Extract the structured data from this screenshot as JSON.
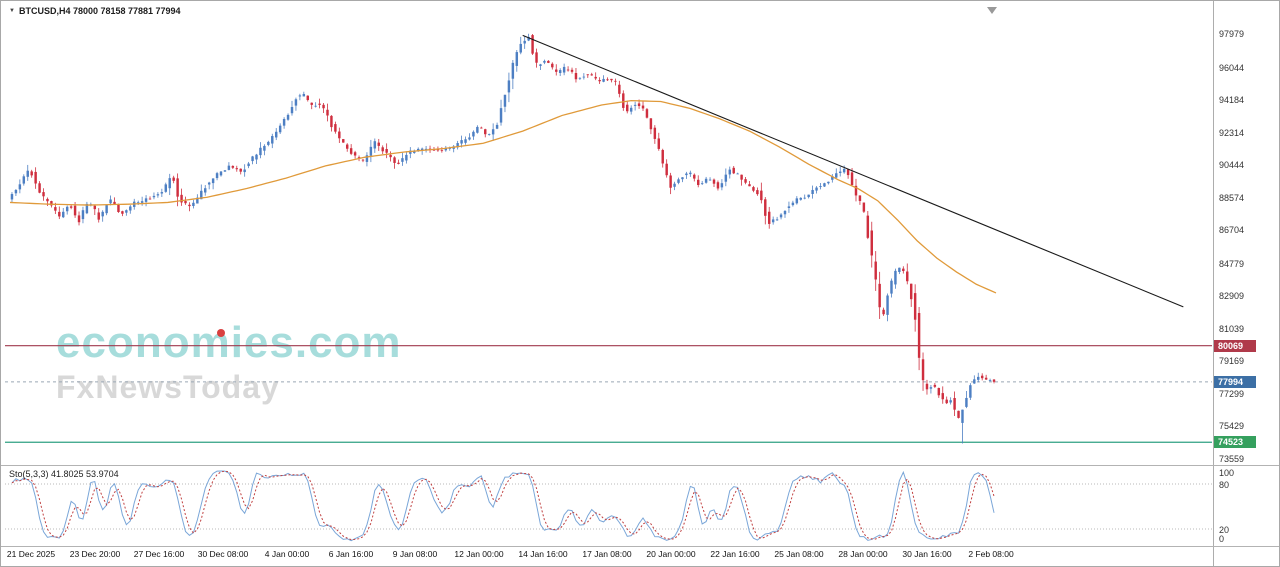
{
  "header": {
    "symbol_info": "BTCUSD,H4 78000 78158 77881 77994",
    "dropdown_icon": "▼"
  },
  "watermark": {
    "line1": "economies.com",
    "line2": "FxNewsToday"
  },
  "indicator": {
    "label": "Sto(5,3,3) 41.8025 53.9704"
  },
  "colors": {
    "up_candle": "#4d7fc3",
    "down_candle": "#cf2e3e",
    "moving_average": "#e09a3a",
    "trendline": "#1a1a1a",
    "resistance_line": "#a03a4e",
    "support_line": "#2fa083",
    "current_price_line": "#9aa7b5",
    "badge_resistance": "#b03a4a",
    "badge_current": "#3c6fa5",
    "badge_support": "#35a05e",
    "stoch_k": "#7aa6d8",
    "stoch_d": "#c04040",
    "watermark_teal": "#6ec8c6",
    "watermark_gray": "#b9b9b9",
    "watermark_dot_red": "#d94040",
    "shift_marker": "#999999"
  },
  "chart_data": {
    "type": "candlestick",
    "symbol": "BTCUSD",
    "timeframe": "H4",
    "current_ohlc": {
      "open": 78000,
      "high": 78158,
      "low": 77881,
      "close": 77994
    },
    "y_axis": {
      "ticks": [
        97979,
        96044,
        94184,
        92314,
        90444,
        88574,
        86704,
        84779,
        82909,
        81039,
        79169,
        77299,
        75429,
        73559
      ],
      "range": [
        73559,
        98500
      ]
    },
    "x_axis": {
      "labels": [
        "21 Dec 2025",
        "23 Dec 20:00",
        "27 Dec 16:00",
        "30 Dec 08:00",
        "4 Jan 00:00",
        "6 Jan 16:00",
        "9 Jan 08:00",
        "12 Jan 00:00",
        "14 Jan 16:00",
        "17 Jan 08:00",
        "20 Jan 00:00",
        "22 Jan 16:00",
        "25 Jan 08:00",
        "28 Jan 00:00",
        "30 Jan 16:00",
        "2 Feb 08:00"
      ]
    },
    "levels": {
      "resistance": 80069,
      "current_price": 77994,
      "support": 74523
    },
    "trendline": {
      "from_f": 0.52,
      "from_price": 97900,
      "to_f": 1.19,
      "to_price": 82300
    },
    "candle_count": 250,
    "extremes": {
      "high_f": 0.528,
      "high_price": 97979,
      "low_f": 0.963,
      "low_price": 74450
    },
    "price_path": [
      [
        0.0,
        88400
      ],
      [
        0.01,
        89300
      ],
      [
        0.022,
        90200
      ],
      [
        0.03,
        89000
      ],
      [
        0.04,
        88300
      ],
      [
        0.052,
        87500
      ],
      [
        0.062,
        88200
      ],
      [
        0.072,
        87300
      ],
      [
        0.082,
        88400
      ],
      [
        0.092,
        87400
      ],
      [
        0.103,
        88500
      ],
      [
        0.115,
        87600
      ],
      [
        0.128,
        88300
      ],
      [
        0.143,
        88500
      ],
      [
        0.158,
        89000
      ],
      [
        0.166,
        90000
      ],
      [
        0.174,
        88400
      ],
      [
        0.186,
        88100
      ],
      [
        0.2,
        89200
      ],
      [
        0.213,
        90000
      ],
      [
        0.225,
        90400
      ],
      [
        0.237,
        90100
      ],
      [
        0.25,
        91000
      ],
      [
        0.263,
        91700
      ],
      [
        0.278,
        92800
      ],
      [
        0.292,
        94300
      ],
      [
        0.3,
        94500
      ],
      [
        0.308,
        93800
      ],
      [
        0.317,
        94000
      ],
      [
        0.327,
        92800
      ],
      [
        0.338,
        91800
      ],
      [
        0.35,
        91000
      ],
      [
        0.36,
        90700
      ],
      [
        0.372,
        91700
      ],
      [
        0.383,
        91100
      ],
      [
        0.394,
        90500
      ],
      [
        0.408,
        91200
      ],
      [
        0.422,
        91400
      ],
      [
        0.437,
        91300
      ],
      [
        0.452,
        91500
      ],
      [
        0.468,
        92100
      ],
      [
        0.478,
        92700
      ],
      [
        0.487,
        92100
      ],
      [
        0.496,
        92800
      ],
      [
        0.505,
        94800
      ],
      [
        0.513,
        96500
      ],
      [
        0.521,
        97500
      ],
      [
        0.528,
        97800
      ],
      [
        0.536,
        96200
      ],
      [
        0.546,
        96500
      ],
      [
        0.556,
        95700
      ],
      [
        0.566,
        96100
      ],
      [
        0.577,
        95400
      ],
      [
        0.588,
        95700
      ],
      [
        0.6,
        95200
      ],
      [
        0.61,
        95500
      ],
      [
        0.618,
        95000
      ],
      [
        0.626,
        93400
      ],
      [
        0.636,
        94000
      ],
      [
        0.646,
        93500
      ],
      [
        0.655,
        92200
      ],
      [
        0.663,
        90700
      ],
      [
        0.672,
        89200
      ],
      [
        0.682,
        89700
      ],
      [
        0.691,
        90100
      ],
      [
        0.701,
        89300
      ],
      [
        0.711,
        89700
      ],
      [
        0.721,
        89100
      ],
      [
        0.731,
        90300
      ],
      [
        0.741,
        89800
      ],
      [
        0.751,
        89200
      ],
      [
        0.761,
        88800
      ],
      [
        0.771,
        87200
      ],
      [
        0.781,
        87400
      ],
      [
        0.791,
        88100
      ],
      [
        0.801,
        88500
      ],
      [
        0.811,
        88700
      ],
      [
        0.821,
        89200
      ],
      [
        0.831,
        89500
      ],
      [
        0.841,
        90000
      ],
      [
        0.85,
        90300
      ],
      [
        0.858,
        88800
      ],
      [
        0.866,
        88200
      ],
      [
        0.873,
        86200
      ],
      [
        0.879,
        84000
      ],
      [
        0.886,
        81500
      ],
      [
        0.893,
        83200
      ],
      [
        0.9,
        84300
      ],
      [
        0.907,
        84600
      ],
      [
        0.913,
        83500
      ],
      [
        0.919,
        82200
      ],
      [
        0.925,
        78500
      ],
      [
        0.931,
        77500
      ],
      [
        0.938,
        77900
      ],
      [
        0.945,
        77200
      ],
      [
        0.951,
        76700
      ],
      [
        0.957,
        77100
      ],
      [
        0.963,
        75600
      ],
      [
        0.969,
        76700
      ],
      [
        0.976,
        77800
      ],
      [
        0.983,
        78300
      ],
      [
        0.991,
        78100
      ],
      [
        1.0,
        77994
      ]
    ],
    "moving_average_path": [
      [
        0.0,
        88300
      ],
      [
        0.04,
        88200
      ],
      [
        0.08,
        88150
      ],
      [
        0.12,
        88200
      ],
      [
        0.16,
        88300
      ],
      [
        0.2,
        88600
      ],
      [
        0.24,
        89100
      ],
      [
        0.28,
        89700
      ],
      [
        0.32,
        90400
      ],
      [
        0.36,
        90900
      ],
      [
        0.4,
        91200
      ],
      [
        0.44,
        91400
      ],
      [
        0.48,
        91700
      ],
      [
        0.52,
        92400
      ],
      [
        0.56,
        93300
      ],
      [
        0.6,
        93900
      ],
      [
        0.63,
        94150
      ],
      [
        0.66,
        94100
      ],
      [
        0.69,
        93700
      ],
      [
        0.72,
        93100
      ],
      [
        0.75,
        92400
      ],
      [
        0.78,
        91500
      ],
      [
        0.81,
        90500
      ],
      [
        0.84,
        89600
      ],
      [
        0.86,
        89100
      ],
      [
        0.88,
        88400
      ],
      [
        0.9,
        87300
      ],
      [
        0.92,
        86100
      ],
      [
        0.94,
        85100
      ],
      [
        0.96,
        84300
      ],
      [
        0.98,
        83600
      ],
      [
        1.0,
        83100
      ]
    ],
    "stochastic": {
      "name": "Sto",
      "params": [
        5,
        3,
        3
      ],
      "value_k": 41.8025,
      "value_d": 53.9704,
      "levels": [
        80,
        20
      ],
      "axis_labels": [
        100,
        80,
        20,
        0
      ],
      "range": [
        0,
        100
      ]
    }
  }
}
